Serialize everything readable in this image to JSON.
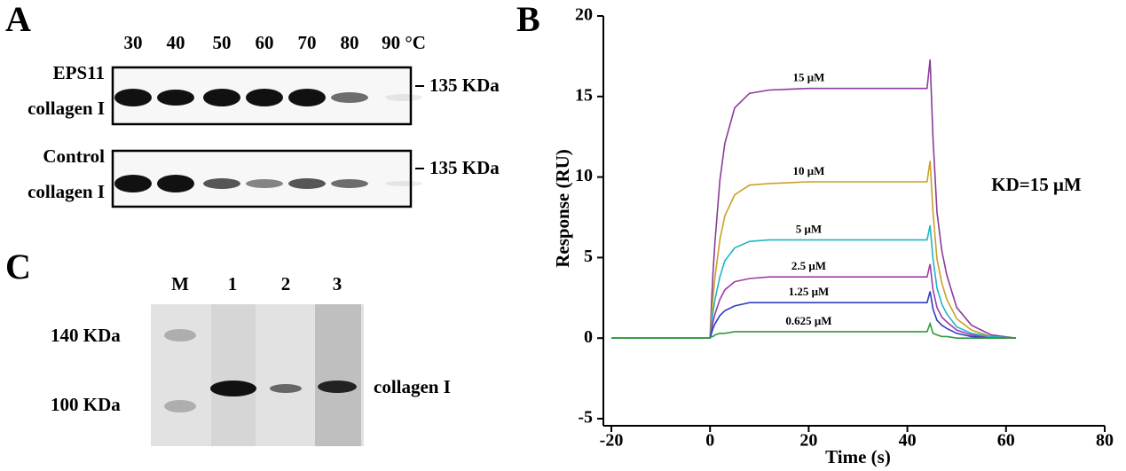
{
  "panel_a": {
    "label": "A",
    "temperatures": [
      "30",
      "40",
      "50",
      "60",
      "70",
      "80",
      "90 °C"
    ],
    "rows": [
      {
        "name": "EPS11",
        "protein": "collagen I",
        "marker": "135 KDa"
      },
      {
        "name": "Control",
        "protein": "collagen I",
        "marker": "135 KDa"
      }
    ]
  },
  "panel_c": {
    "label": "C",
    "lanes": [
      "M",
      "1",
      "2",
      "3"
    ],
    "markers": [
      "140 KDa",
      "100 KDa"
    ],
    "band_label": "collagen I"
  },
  "chart_data": {
    "type": "line",
    "panel_label": "B",
    "xlabel": "Time (s)",
    "ylabel": "Response (RU)",
    "annotation": "KD=15 μM",
    "x": [
      -20,
      -1,
      0,
      0.3,
      0.6,
      1,
      2,
      3,
      5,
      8,
      12,
      20,
      30,
      44,
      44.6,
      45.2,
      46,
      47,
      48,
      50,
      53,
      57,
      62
    ],
    "xlim": [
      -20,
      80
    ],
    "ylim": [
      -5,
      20
    ],
    "xticks": [
      -20,
      0,
      20,
      40,
      60,
      80
    ],
    "yticks": [
      -5,
      0,
      5,
      10,
      15,
      20
    ],
    "series": [
      {
        "name": "15 μM",
        "color": "#8a3c9a",
        "values": [
          0,
          0,
          0,
          2.2,
          4.0,
          6.0,
          9.8,
          12.1,
          14.3,
          15.2,
          15.4,
          15.5,
          15.5,
          15.5,
          17.3,
          12.4,
          7.8,
          5.4,
          3.9,
          1.9,
          0.8,
          0.2,
          0
        ]
      },
      {
        "name": "10 μM",
        "color": "#c9a227",
        "values": [
          0,
          0,
          0,
          1.4,
          2.5,
          3.8,
          6.1,
          7.6,
          8.9,
          9.5,
          9.6,
          9.7,
          9.7,
          9.7,
          11.0,
          7.8,
          4.9,
          3.4,
          2.4,
          1.2,
          0.5,
          0.1,
          0
        ]
      },
      {
        "name": "5 μM",
        "color": "#1fb5c4",
        "values": [
          0,
          0,
          0,
          0.9,
          1.6,
          2.4,
          3.8,
          4.8,
          5.6,
          6.0,
          6.1,
          6.1,
          6.1,
          6.1,
          7.0,
          4.9,
          3.1,
          2.1,
          1.5,
          0.7,
          0.3,
          0.1,
          0
        ]
      },
      {
        "name": "2.5 μM",
        "color": "#a03ca8",
        "values": [
          0,
          0,
          0,
          0.5,
          1.0,
          1.5,
          2.4,
          3.0,
          3.5,
          3.7,
          3.8,
          3.8,
          3.8,
          3.8,
          4.6,
          3.0,
          1.9,
          1.3,
          1.0,
          0.5,
          0.2,
          0,
          0
        ]
      },
      {
        "name": "1.25 μM",
        "color": "#2f3fbf",
        "values": [
          0,
          0,
          0,
          0.3,
          0.6,
          0.9,
          1.4,
          1.7,
          2.0,
          2.2,
          2.2,
          2.2,
          2.2,
          2.2,
          2.9,
          1.8,
          1.1,
          0.8,
          0.6,
          0.3,
          0.1,
          0,
          0
        ]
      },
      {
        "name": "0.625 μM",
        "color": "#2f9a3c",
        "values": [
          0,
          0,
          0,
          0.1,
          0.1,
          0.2,
          0.3,
          0.3,
          0.4,
          0.4,
          0.4,
          0.4,
          0.4,
          0.4,
          0.9,
          0.3,
          0.2,
          0.1,
          0.1,
          0,
          0,
          0,
          0
        ]
      }
    ]
  }
}
